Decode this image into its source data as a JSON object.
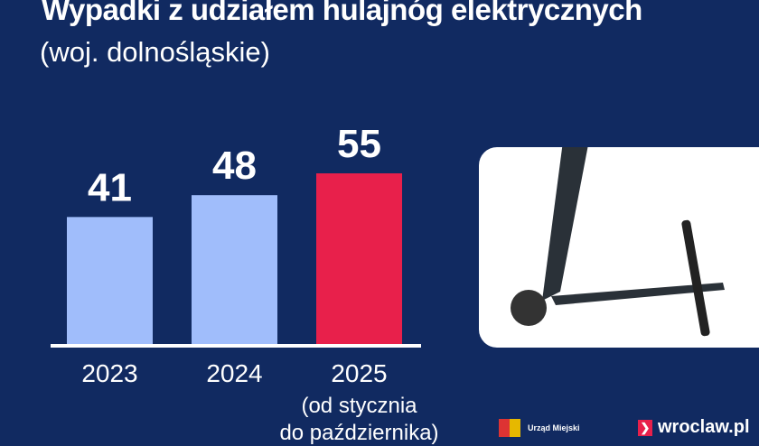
{
  "chart_data": {
    "type": "bar",
    "title": "Wypadki z udziałem hulajnóg elektrycznych",
    "subtitle": "(woj. dolnośląskie)",
    "categories": [
      "2023",
      "2024",
      "2025"
    ],
    "values": [
      41,
      48,
      55
    ],
    "data_labels": [
      "41",
      "48",
      "55"
    ],
    "category_note": "(od stycznia",
    "category_note_2": "do października)",
    "colors": [
      "#a0bdfb",
      "#a0bdfb",
      "#e8204b"
    ],
    "ylim": [
      0,
      60
    ],
    "grid": false
  },
  "footer": {
    "logo1": "Urząd Miejski",
    "logo2": "wroclaw.pl"
  }
}
